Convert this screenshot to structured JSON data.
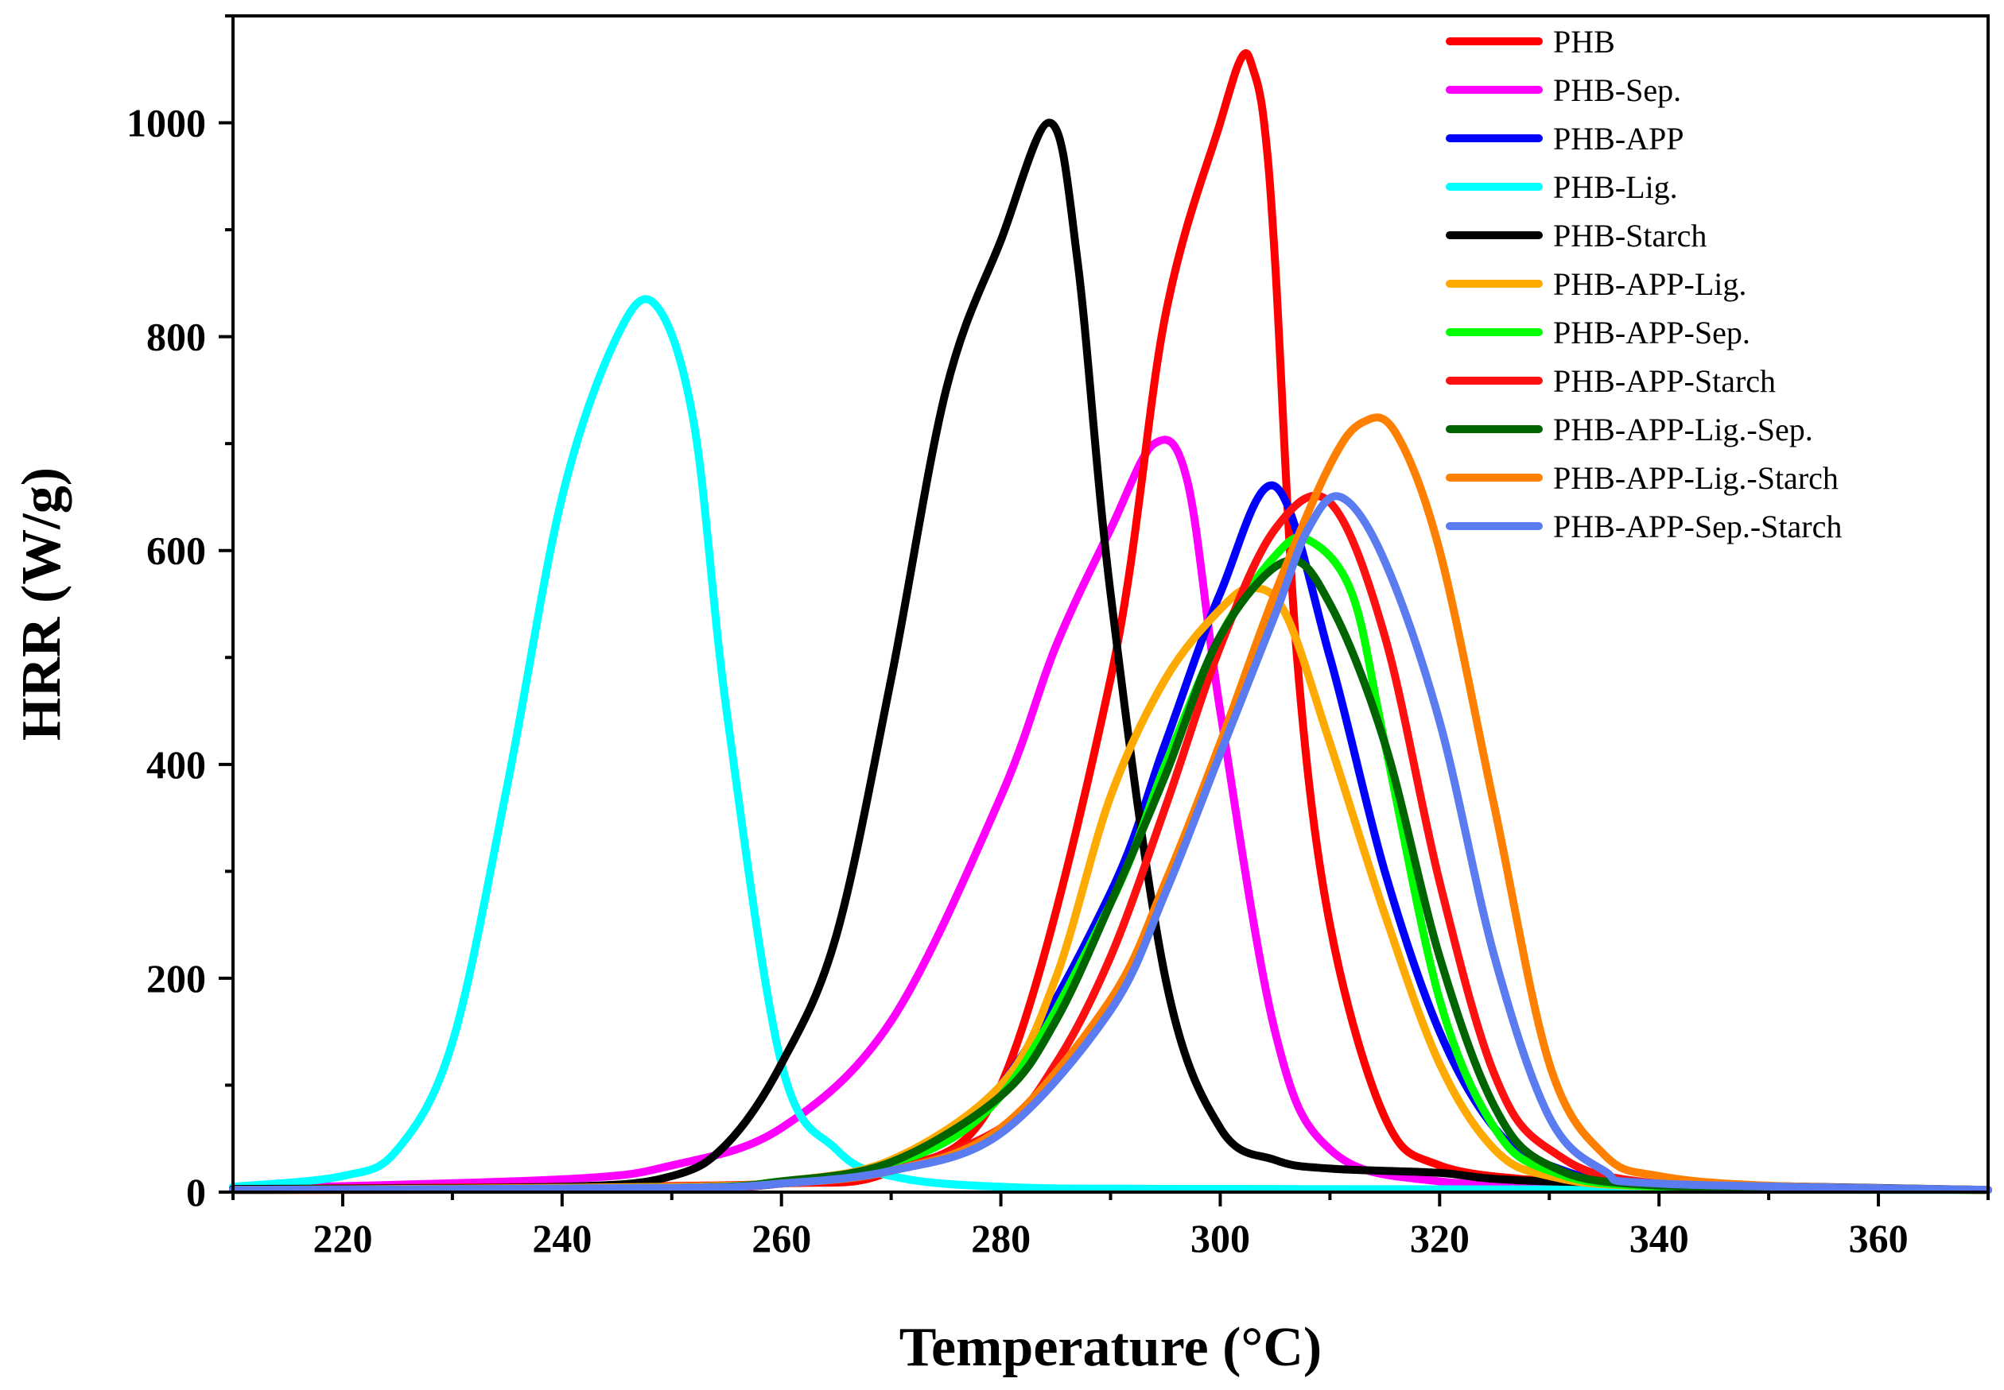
{
  "chart_data": {
    "type": "line",
    "xlabel": "Temperature (°C)",
    "ylabel": "HRR (W/g)",
    "xlim": [
      210,
      370
    ],
    "ylim": [
      0,
      1100
    ],
    "x_ticks": [
      220,
      240,
      260,
      280,
      300,
      320,
      340,
      360
    ],
    "y_ticks": [
      0,
      200,
      400,
      600,
      800,
      1000
    ],
    "legend_position": "top-right",
    "series": [
      {
        "name": "PHB",
        "color": "#ff0000",
        "x": [
          210,
          240,
          260,
          270,
          280,
          290,
          295,
          300,
          302,
          303,
          304,
          305,
          307,
          310,
          315,
          320,
          330,
          340,
          370
        ],
        "values": [
          3,
          5,
          8,
          20,
          100,
          480,
          820,
          1000,
          1062,
          1050,
          1000,
          870,
          500,
          250,
          70,
          25,
          10,
          5,
          2
        ]
      },
      {
        "name": "PHB-Sep.",
        "color": "#ff00ff",
        "x": [
          210,
          240,
          250,
          260,
          270,
          280,
          285,
          290,
          294,
          297,
          300,
          305,
          310,
          320,
          340,
          370
        ],
        "values": [
          3,
          12,
          25,
          60,
          160,
          370,
          510,
          620,
          700,
          665,
          450,
          150,
          40,
          10,
          5,
          2
        ],
        "order": 0
      },
      {
        "name": "PHB-APP",
        "color": "#0000ff",
        "x": [
          210,
          250,
          260,
          270,
          280,
          290,
          295,
          300,
          305,
          310,
          315,
          320,
          325,
          330,
          340,
          370
        ],
        "values": [
          2,
          4,
          8,
          25,
          100,
          280,
          420,
          560,
          660,
          500,
          300,
          150,
          60,
          25,
          6,
          2
        ]
      },
      {
        "name": "PHB-Lig.",
        "color": "#00ffff",
        "x": [
          210,
          220,
          225,
          230,
          235,
          240,
          245,
          248.5,
          252,
          255,
          260,
          265,
          270,
          280,
          300,
          370
        ],
        "values": [
          5,
          15,
          40,
          140,
          380,
          650,
          800,
          830,
          720,
          450,
          120,
          40,
          15,
          5,
          3,
          2
        ]
      },
      {
        "name": "PHB-Starch",
        "color": "#000000",
        "x": [
          210,
          240,
          250,
          255,
          260,
          265,
          270,
          275,
          280,
          284.5,
          287,
          290,
          295,
          300,
          305,
          310,
          320,
          330,
          370
        ],
        "values": [
          3,
          5,
          15,
          45,
          120,
          240,
          480,
          750,
          890,
          1000,
          870,
          560,
          200,
          60,
          30,
          22,
          18,
          10,
          2
        ]
      },
      {
        "name": "PHB-APP-Lig.",
        "color": "#ffaa00",
        "x": [
          210,
          250,
          260,
          270,
          280,
          285,
          290,
          295,
          300,
          303,
          306,
          310,
          315,
          320,
          325,
          330,
          340,
          370
        ],
        "values": [
          2,
          5,
          10,
          30,
          100,
          200,
          370,
          480,
          545,
          565,
          540,
          420,
          260,
          120,
          40,
          15,
          5,
          2
        ]
      },
      {
        "name": "PHB-APP-Sep.",
        "color": "#00ff00",
        "x": [
          210,
          250,
          260,
          270,
          280,
          290,
          295,
          300,
          305,
          308,
          312,
          315,
          320,
          325,
          330,
          340,
          370
        ],
        "values": [
          2,
          4,
          10,
          25,
          90,
          270,
          400,
          520,
          595,
          610,
          560,
          420,
          180,
          60,
          20,
          5,
          2
        ]
      },
      {
        "name": "PHB-APP-Starch",
        "color": "#ff1010",
        "x": [
          210,
          250,
          260,
          270,
          280,
          285,
          290,
          295,
          300,
          305,
          310,
          315,
          320,
          325,
          330,
          340,
          370
        ],
        "values": [
          2,
          3,
          8,
          20,
          60,
          120,
          220,
          360,
          510,
          620,
          645,
          520,
          290,
          110,
          40,
          8,
          2
        ]
      },
      {
        "name": "PHB-APP-Lig.-Sep.",
        "color": "#006400",
        "x": [
          210,
          250,
          260,
          270,
          280,
          285,
          290,
          295,
          300,
          306,
          310,
          315,
          320,
          325,
          330,
          340,
          370
        ],
        "values": [
          2,
          4,
          10,
          28,
          90,
          160,
          270,
          390,
          520,
          590,
          550,
          420,
          220,
          80,
          25,
          6,
          2
        ]
      },
      {
        "name": "PHB-APP-Lig.-Starch",
        "color": "#ff8000",
        "x": [
          210,
          250,
          260,
          270,
          280,
          290,
          295,
          300,
          305,
          310,
          313,
          316,
          320,
          325,
          330,
          335,
          340,
          350,
          370
        ],
        "values": [
          2,
          4,
          8,
          20,
          60,
          180,
          290,
          420,
          560,
          680,
          720,
          710,
          600,
          360,
          120,
          35,
          15,
          6,
          2
        ]
      },
      {
        "name": "PHB-APP-Sep.-Starch",
        "color": "#5b7cf0",
        "x": [
          210,
          250,
          260,
          270,
          280,
          290,
          295,
          300,
          305,
          308,
          311,
          315,
          320,
          325,
          330,
          335,
          340,
          370
        ],
        "values": [
          2,
          4,
          8,
          20,
          55,
          170,
          280,
          410,
          540,
          620,
          650,
          590,
          440,
          220,
          70,
          20,
          8,
          2
        ]
      }
    ]
  }
}
